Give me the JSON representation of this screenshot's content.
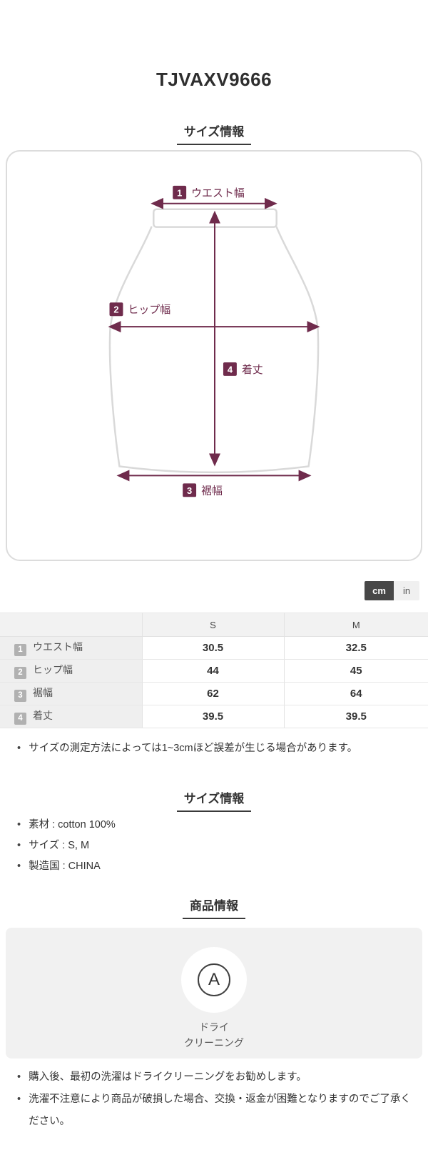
{
  "product": {
    "title": "TJVAXV9666"
  },
  "headings": {
    "size_diagram": "サイズ情報",
    "size_details": "サイズ情報",
    "product_info": "商品情報"
  },
  "diagram": {
    "accent_color": "#6f2b4c",
    "outline_color": "#d9d9d9",
    "labels": {
      "waist": {
        "num": "1",
        "text": "ウエスト幅"
      },
      "hip": {
        "num": "2",
        "text": "ヒップ幅"
      },
      "hem": {
        "num": "3",
        "text": "裾幅"
      },
      "length": {
        "num": "4",
        "text": "着丈"
      }
    }
  },
  "unit_toggle": {
    "cm_label": "cm",
    "in_label": "in",
    "active_unit": "cm"
  },
  "size_table": {
    "unit_columns": [
      "S",
      "M"
    ],
    "rows": [
      {
        "num": "1",
        "label": "ウエスト幅",
        "values": [
          "30.5",
          "32.5"
        ]
      },
      {
        "num": "2",
        "label": "ヒップ幅",
        "values": [
          "44",
          "45"
        ]
      },
      {
        "num": "3",
        "label": "裾幅",
        "values": [
          "62",
          "64"
        ]
      },
      {
        "num": "4",
        "label": "着丈",
        "values": [
          "39.5",
          "39.5"
        ]
      }
    ],
    "notes": [
      "サイズの測定方法によっては1~3cmほど誤差が生じる場合があります。"
    ]
  },
  "size_details": {
    "items": [
      "素材 : cotton 100%",
      "サイズ : S, M",
      "製造国 : CHINA"
    ]
  },
  "product_info": {
    "care_symbol_letter": "A",
    "care_label_line1": "ドライ",
    "care_label_line2": "クリーニング",
    "notes": [
      "購入後、最初の洗濯はドライクリーニングをお勧めします。",
      "洗濯不注意により商品が破損した場合、交換・返金が困難となりますのでご了承ください。"
    ]
  }
}
